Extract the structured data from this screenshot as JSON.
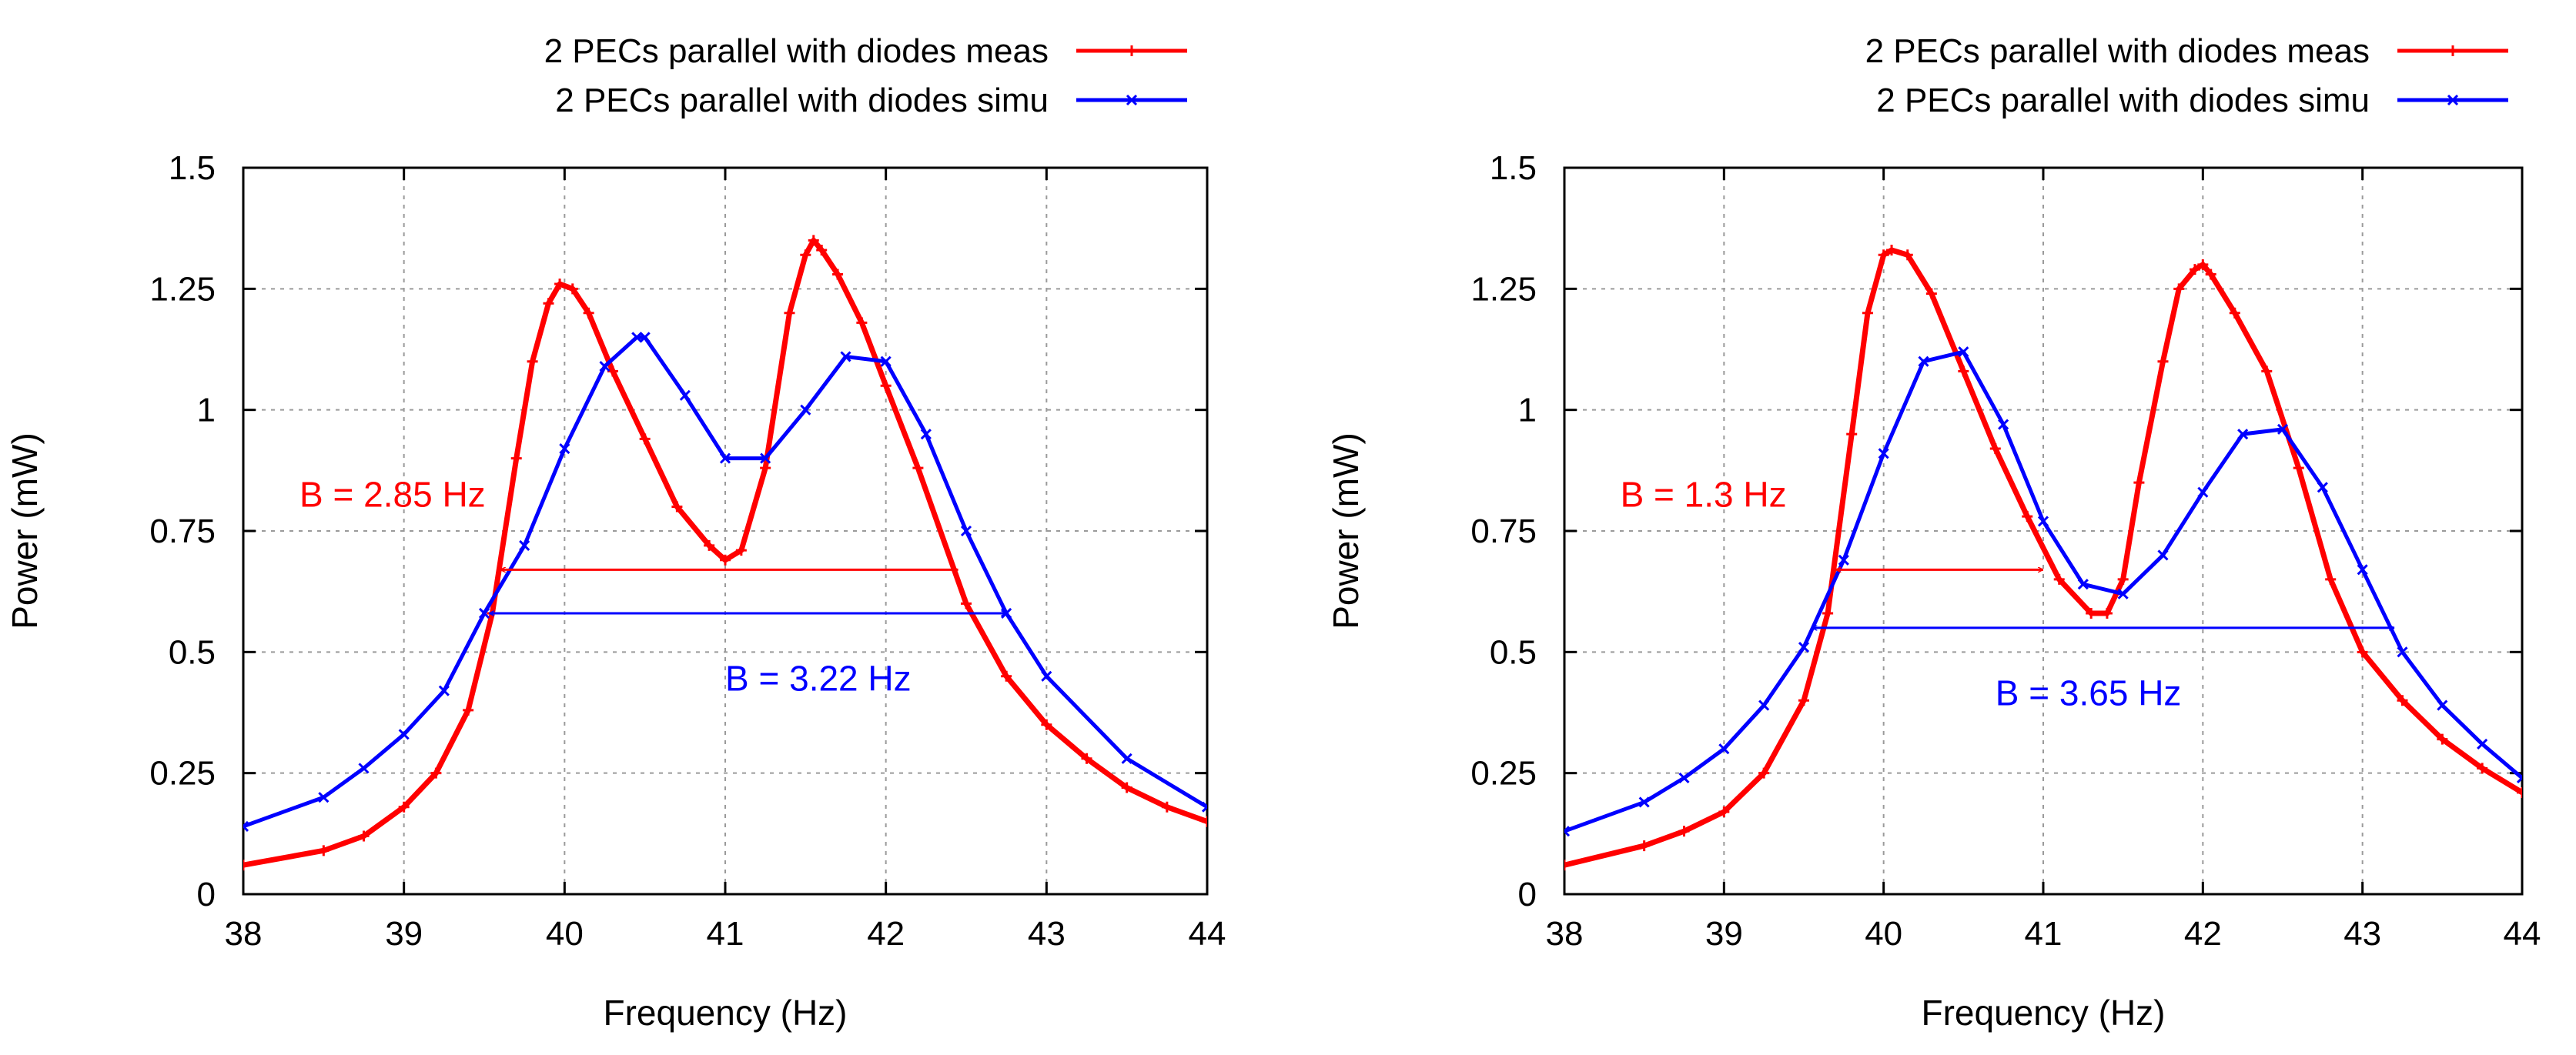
{
  "chart_data": [
    {
      "type": "line",
      "title": "",
      "xlabel": "Frequency (Hz)",
      "ylabel": "Power (mW)",
      "xlim": [
        38,
        44
      ],
      "ylim": [
        0,
        1.5
      ],
      "xticks": [
        38,
        39,
        40,
        41,
        42,
        43,
        44
      ],
      "yticks": [
        0,
        0.25,
        0.5,
        0.75,
        1,
        1.25,
        1.5
      ],
      "xtick_labels": [
        "38",
        "39",
        "40",
        "41",
        "42",
        "43",
        "44"
      ],
      "ytick_labels": [
        "0",
        "0.25",
        "0.5",
        "0.75",
        "1",
        "1.25",
        "1.5"
      ],
      "grid": true,
      "legend_position": "top-right, outside plot",
      "series": [
        {
          "name": "2 PECs parallel with diodes meas",
          "color": "#ff0000",
          "marker": "plus",
          "x": [
            38,
            38.5,
            38.75,
            39,
            39.2,
            39.4,
            39.55,
            39.7,
            39.8,
            39.9,
            39.97,
            40.05,
            40.15,
            40.3,
            40.5,
            40.7,
            40.9,
            41.0,
            41.1,
            41.25,
            41.4,
            41.5,
            41.55,
            41.6,
            41.7,
            41.85,
            42.0,
            42.2,
            42.5,
            42.75,
            43.0,
            43.25,
            43.5,
            43.75,
            44
          ],
          "y": [
            0.06,
            0.09,
            0.12,
            0.18,
            0.25,
            0.38,
            0.58,
            0.9,
            1.1,
            1.22,
            1.26,
            1.25,
            1.2,
            1.08,
            0.94,
            0.8,
            0.72,
            0.69,
            0.71,
            0.88,
            1.2,
            1.32,
            1.35,
            1.33,
            1.28,
            1.18,
            1.05,
            0.88,
            0.6,
            0.45,
            0.35,
            0.28,
            0.22,
            0.18,
            0.15
          ]
        },
        {
          "name": "2 PECs parallel with diodes simu",
          "color": "#0000ff",
          "marker": "x",
          "x": [
            38,
            38.5,
            38.75,
            39,
            39.25,
            39.5,
            39.75,
            40,
            40.25,
            40.45,
            40.5,
            40.75,
            41,
            41.25,
            41.5,
            41.75,
            42,
            42.25,
            42.5,
            42.75,
            43,
            43.5,
            44
          ],
          "y": [
            0.14,
            0.2,
            0.26,
            0.33,
            0.42,
            0.58,
            0.72,
            0.92,
            1.09,
            1.15,
            1.15,
            1.03,
            0.9,
            0.9,
            1.0,
            1.11,
            1.1,
            0.95,
            0.75,
            0.58,
            0.45,
            0.28,
            0.18
          ]
        }
      ],
      "annotations": [
        {
          "text": "B = 2.85 Hz",
          "color": "#ff0000",
          "x": 38.35,
          "y": 0.8,
          "arrow_from": 39.6,
          "arrow_to": 42.45,
          "arrow_y": 0.67
        },
        {
          "text": "B = 3.22 Hz",
          "color": "#0000ff",
          "x": 41.0,
          "y": 0.42,
          "arrow_from": 39.53,
          "arrow_to": 42.75,
          "arrow_y": 0.58
        }
      ]
    },
    {
      "type": "line",
      "title": "",
      "xlabel": "Frequency (Hz)",
      "ylabel": "Power (mW)",
      "xlim": [
        38,
        44
      ],
      "ylim": [
        0,
        1.5
      ],
      "xticks": [
        38,
        39,
        40,
        41,
        42,
        43,
        44
      ],
      "yticks": [
        0,
        0.25,
        0.5,
        0.75,
        1,
        1.25,
        1.5
      ],
      "xtick_labels": [
        "38",
        "39",
        "40",
        "41",
        "42",
        "43",
        "44"
      ],
      "ytick_labels": [
        "0",
        "0.25",
        "0.5",
        "0.75",
        "1",
        "1.25",
        "1.5"
      ],
      "grid": true,
      "legend_position": "top-right, outside plot",
      "series": [
        {
          "name": "2 PECs parallel with diodes meas",
          "color": "#ff0000",
          "marker": "plus",
          "x": [
            38,
            38.5,
            38.75,
            39,
            39.25,
            39.5,
            39.65,
            39.8,
            39.9,
            40.0,
            40.05,
            40.15,
            40.3,
            40.5,
            40.7,
            40.9,
            41.1,
            41.3,
            41.4,
            41.5,
            41.6,
            41.75,
            41.85,
            41.95,
            42.0,
            42.05,
            42.2,
            42.4,
            42.6,
            42.8,
            43.0,
            43.25,
            43.5,
            43.75,
            44
          ],
          "y": [
            0.06,
            0.1,
            0.13,
            0.17,
            0.25,
            0.4,
            0.58,
            0.95,
            1.2,
            1.32,
            1.33,
            1.32,
            1.24,
            1.08,
            0.92,
            0.78,
            0.65,
            0.58,
            0.58,
            0.65,
            0.85,
            1.1,
            1.25,
            1.29,
            1.3,
            1.28,
            1.2,
            1.08,
            0.88,
            0.65,
            0.5,
            0.4,
            0.32,
            0.26,
            0.21
          ]
        },
        {
          "name": "2 PECs parallel with diodes simu",
          "color": "#0000ff",
          "marker": "x",
          "x": [
            38,
            38.5,
            38.75,
            39,
            39.25,
            39.5,
            39.75,
            40,
            40.25,
            40.5,
            40.75,
            41,
            41.25,
            41.5,
            41.75,
            42,
            42.25,
            42.5,
            42.75,
            43,
            43.25,
            43.5,
            43.75,
            44
          ],
          "y": [
            0.13,
            0.19,
            0.24,
            0.3,
            0.39,
            0.51,
            0.69,
            0.91,
            1.1,
            1.12,
            0.97,
            0.77,
            0.64,
            0.62,
            0.7,
            0.83,
            0.95,
            0.96,
            0.84,
            0.67,
            0.5,
            0.39,
            0.31,
            0.24
          ]
        }
      ],
      "annotations": [
        {
          "text": "B = 1.3 Hz",
          "color": "#ff0000",
          "x": 38.35,
          "y": 0.8,
          "arrow_from": 39.7,
          "arrow_to": 41.0,
          "arrow_y": 0.67
        },
        {
          "text": "B = 3.65 Hz",
          "color": "#0000ff",
          "x": 40.7,
          "y": 0.39,
          "arrow_from": 39.55,
          "arrow_to": 43.2,
          "arrow_y": 0.55
        }
      ]
    }
  ]
}
